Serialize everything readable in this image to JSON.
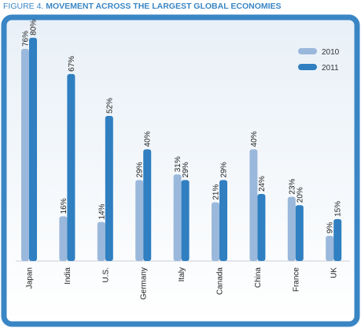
{
  "figure": {
    "label": "FIGURE 4.",
    "title": "MOVEMENT ACROSS THE LARGEST GLOBAL ECONOMIES"
  },
  "colors": {
    "panel_border": "#3a86c5",
    "panel_bg_top": "#e8f0f7",
    "panel_bg_bottom": "#ffffff",
    "series_2010": "#9ab8db",
    "series_2011": "#2f7fc1"
  },
  "chart_data": {
    "type": "bar",
    "orientation": "vertical",
    "categories": [
      "Japan",
      "India",
      "U.S.",
      "Germany",
      "Italy",
      "Canada",
      "China",
      "France",
      "UK"
    ],
    "series": [
      {
        "name": "2010",
        "values": [
          76,
          16,
          14,
          29,
          31,
          21,
          40,
          23,
          9
        ],
        "labels": [
          "76%",
          "16%",
          "14%",
          "29%",
          "31%",
          "21%",
          "40%",
          "23%",
          "9%"
        ]
      },
      {
        "name": "2011",
        "values": [
          80,
          67,
          52,
          40,
          29,
          29,
          24,
          20,
          15
        ],
        "labels": [
          "80%",
          "67%",
          "52%",
          "40%",
          "29%",
          "29%",
          "24%",
          "20%",
          "15%"
        ]
      }
    ],
    "ylim": [
      0,
      85
    ],
    "grid": false,
    "legend_position": "top-right",
    "title": "MOVEMENT ACROSS THE LARGEST GLOBAL ECONOMIES",
    "xlabel": "",
    "ylabel": ""
  }
}
